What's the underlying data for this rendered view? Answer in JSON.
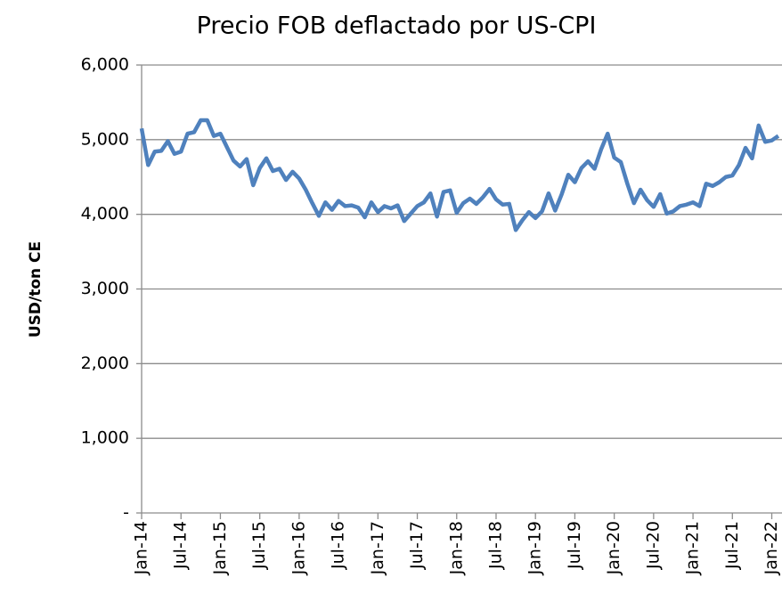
{
  "chart_data": {
    "type": "line",
    "title": "Precio FOB deflactado por US-CPI",
    "ylabel": "USD/ton CE",
    "categories": [
      "Jan-14",
      null,
      null,
      null,
      null,
      null,
      "Jul-14",
      null,
      null,
      null,
      null,
      null,
      "Jan-15",
      null,
      null,
      null,
      null,
      null,
      "Jul-15",
      null,
      null,
      null,
      null,
      null,
      "Jan-16",
      null,
      null,
      null,
      null,
      null,
      "Jul-16",
      null,
      null,
      null,
      null,
      null,
      "Jan-17",
      null,
      null,
      null,
      null,
      null,
      "Jul-17",
      null,
      null,
      null,
      null,
      null,
      "Jan-18",
      null,
      null,
      null,
      null,
      null,
      "Jul-18",
      null,
      null,
      null,
      null,
      null,
      "Jan-19",
      null,
      null,
      null,
      null,
      null,
      "Jul-19",
      null,
      null,
      null,
      null,
      null,
      "Jan-20",
      null,
      null,
      null,
      null,
      null,
      "Jul-20",
      null,
      null,
      null,
      null,
      null,
      "Jan-21",
      null,
      null,
      null,
      null,
      null,
      "Jul-21",
      null,
      null,
      null,
      null,
      null,
      "Jan-22",
      null
    ],
    "series": [
      {
        "name": "Precio FOB deflactado",
        "color": "#4f81bd",
        "values": [
          5150,
          4660,
          4840,
          4850,
          4980,
          4810,
          4840,
          5080,
          5100,
          5260,
          5260,
          5050,
          5080,
          4900,
          4720,
          4640,
          4740,
          4390,
          4620,
          4750,
          4580,
          4610,
          4460,
          4570,
          4480,
          4330,
          4150,
          3980,
          4160,
          4060,
          4180,
          4110,
          4120,
          4090,
          3960,
          4160,
          4030,
          4110,
          4080,
          4120,
          3910,
          4010,
          4110,
          4160,
          4280,
          3970,
          4300,
          4320,
          4020,
          4150,
          4210,
          4140,
          4230,
          4340,
          4200,
          4130,
          4140,
          3790,
          3920,
          4030,
          3950,
          4040,
          4280,
          4050,
          4270,
          4530,
          4430,
          4620,
          4710,
          4610,
          4870,
          5080,
          4760,
          4700,
          4410,
          4150,
          4330,
          4190,
          4100,
          4270,
          4010,
          4040,
          4110,
          4130,
          4160,
          4110,
          4410,
          4380,
          4430,
          4500,
          4520,
          4660,
          4890,
          4750,
          5190,
          4970,
          4990,
          5050
        ]
      }
    ],
    "ylim": [
      0,
      6000
    ],
    "yticks": [
      {
        "value": 0,
        "label": "-"
      },
      {
        "value": 1000,
        "label": "1,000"
      },
      {
        "value": 2000,
        "label": "2,000"
      },
      {
        "value": 3000,
        "label": "3,000"
      },
      {
        "value": 4000,
        "label": "4,000"
      },
      {
        "value": 5000,
        "label": "5,000"
      },
      {
        "value": 6000,
        "label": "6,000"
      }
    ],
    "grid": true
  }
}
